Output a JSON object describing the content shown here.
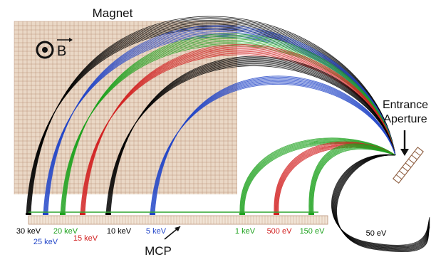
{
  "magnet": {
    "title": "Magnet",
    "field_symbol": "B",
    "fill_color": "#ead8c6",
    "grid_color": "#b98f75"
  },
  "aperture": {
    "label_line1": "Entrance",
    "label_line2": "Aperture"
  },
  "detector": {
    "label": "MCP",
    "fill_color": "#f1e4d6",
    "line_color": "#2fa62f"
  },
  "energies": [
    {
      "label": "30 keV",
      "color": "#000000"
    },
    {
      "label": "25 keV",
      "color": "#2346c8"
    },
    {
      "label": "20 keV",
      "color": "#1fa21f"
    },
    {
      "label": "15 keV",
      "color": "#d22222"
    },
    {
      "label": "10 keV",
      "color": "#000000"
    },
    {
      "label": "5 keV",
      "color": "#2346c8"
    },
    {
      "label": "1 keV",
      "color": "#1fa21f"
    },
    {
      "label": "500 eV",
      "color": "#d22222"
    },
    {
      "label": "150 eV",
      "color": "#1fa21f"
    },
    {
      "label": "50 eV",
      "color": "#000000"
    }
  ]
}
